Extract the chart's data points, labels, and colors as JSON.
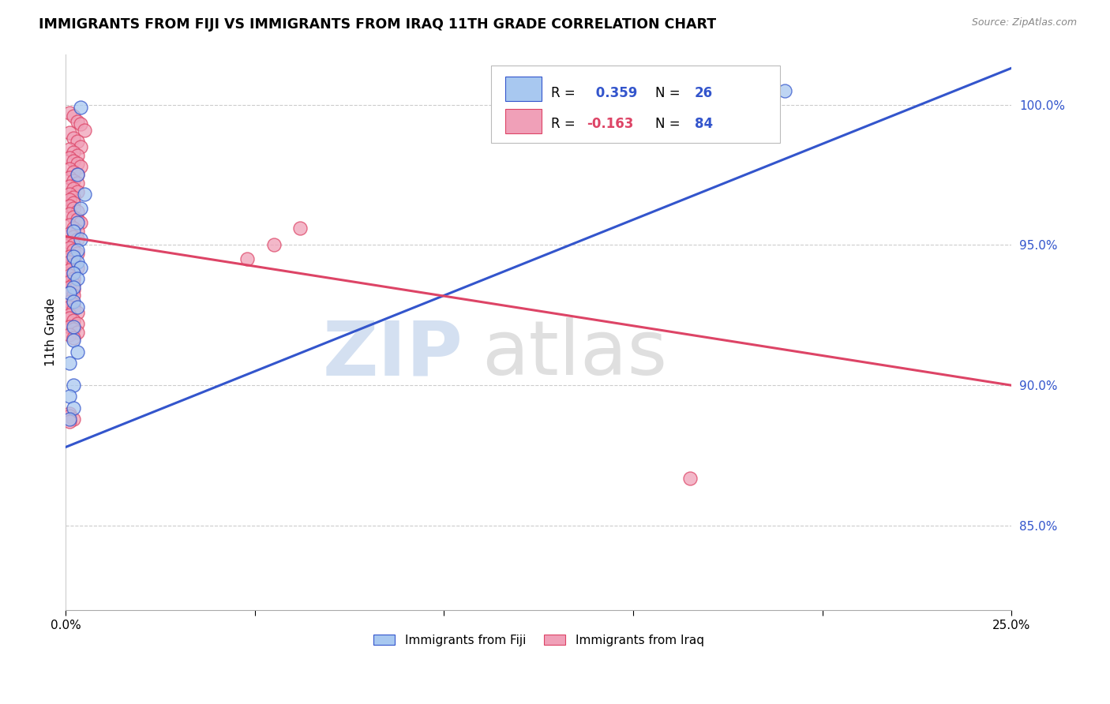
{
  "title": "IMMIGRANTS FROM FIJI VS IMMIGRANTS FROM IRAQ 11TH GRADE CORRELATION CHART",
  "source": "Source: ZipAtlas.com",
  "ylabel": "11th Grade",
  "xlim": [
    0.0,
    0.25
  ],
  "ylim": [
    0.82,
    1.018
  ],
  "fiji_R": 0.359,
  "fiji_N": 26,
  "iraq_R": -0.163,
  "iraq_N": 84,
  "fiji_color": "#a8c8f0",
  "iraq_color": "#f0a0b8",
  "fiji_line_color": "#3355cc",
  "iraq_line_color": "#dd4466",
  "fiji_line_x0": 0.0,
  "fiji_line_y0": 0.878,
  "fiji_line_x1": 0.25,
  "fiji_line_y1": 1.013,
  "iraq_line_x0": 0.0,
  "iraq_line_y0": 0.953,
  "iraq_line_x1": 0.25,
  "iraq_line_y1": 0.9,
  "ytick_color": "#3355cc",
  "fiji_x": [
    0.004,
    0.003,
    0.005,
    0.004,
    0.003,
    0.002,
    0.004,
    0.003,
    0.002,
    0.003,
    0.004,
    0.002,
    0.003,
    0.002,
    0.001,
    0.002,
    0.003,
    0.002,
    0.002,
    0.003,
    0.001,
    0.002,
    0.001,
    0.002,
    0.001,
    0.19
  ],
  "fiji_y": [
    0.999,
    0.975,
    0.968,
    0.963,
    0.958,
    0.955,
    0.952,
    0.948,
    0.946,
    0.944,
    0.942,
    0.94,
    0.938,
    0.935,
    0.933,
    0.93,
    0.928,
    0.921,
    0.916,
    0.912,
    0.908,
    0.9,
    0.896,
    0.892,
    0.888,
    1.005
  ],
  "iraq_x": [
    0.001,
    0.002,
    0.003,
    0.004,
    0.005,
    0.001,
    0.002,
    0.003,
    0.004,
    0.001,
    0.002,
    0.003,
    0.001,
    0.002,
    0.003,
    0.004,
    0.001,
    0.002,
    0.003,
    0.001,
    0.002,
    0.003,
    0.001,
    0.002,
    0.003,
    0.001,
    0.002,
    0.001,
    0.002,
    0.001,
    0.002,
    0.003,
    0.001,
    0.002,
    0.003,
    0.004,
    0.001,
    0.002,
    0.003,
    0.001,
    0.002,
    0.003,
    0.001,
    0.002,
    0.001,
    0.002,
    0.003,
    0.001,
    0.002,
    0.001,
    0.002,
    0.003,
    0.001,
    0.002,
    0.001,
    0.002,
    0.001,
    0.002,
    0.001,
    0.002,
    0.001,
    0.002,
    0.001,
    0.002,
    0.001,
    0.002,
    0.003,
    0.001,
    0.001,
    0.002,
    0.003,
    0.001,
    0.002,
    0.003,
    0.001,
    0.002,
    0.001,
    0.001,
    0.002,
    0.001,
    0.062,
    0.055,
    0.048,
    0.165
  ],
  "iraq_y": [
    0.997,
    0.996,
    0.994,
    0.993,
    0.991,
    0.99,
    0.988,
    0.987,
    0.985,
    0.984,
    0.983,
    0.982,
    0.981,
    0.98,
    0.979,
    0.978,
    0.977,
    0.976,
    0.975,
    0.974,
    0.973,
    0.972,
    0.971,
    0.97,
    0.969,
    0.968,
    0.967,
    0.966,
    0.965,
    0.964,
    0.963,
    0.962,
    0.961,
    0.96,
    0.959,
    0.958,
    0.957,
    0.956,
    0.955,
    0.954,
    0.953,
    0.952,
    0.951,
    0.95,
    0.949,
    0.948,
    0.947,
    0.946,
    0.945,
    0.944,
    0.943,
    0.942,
    0.941,
    0.94,
    0.939,
    0.938,
    0.937,
    0.936,
    0.935,
    0.934,
    0.933,
    0.932,
    0.93,
    0.929,
    0.928,
    0.927,
    0.926,
    0.925,
    0.924,
    0.923,
    0.922,
    0.921,
    0.92,
    0.919,
    0.918,
    0.917,
    0.89,
    0.889,
    0.888,
    0.887,
    0.956,
    0.95,
    0.945,
    0.867
  ]
}
